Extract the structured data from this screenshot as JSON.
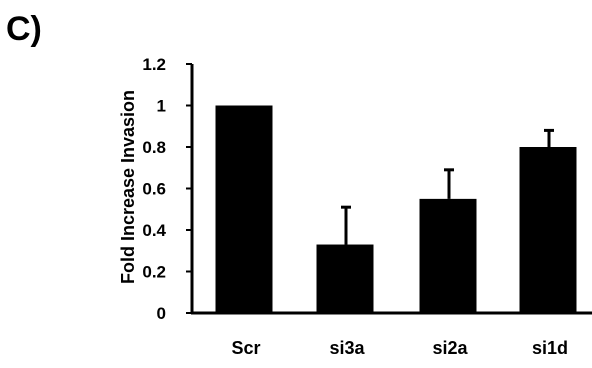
{
  "panel_label": "C)",
  "colors": {
    "bar": "#000000",
    "axis": "#000000",
    "text": "#000000",
    "background": "#ffffff"
  },
  "chart_data": {
    "type": "bar",
    "title": "",
    "xlabel": "",
    "ylabel": "Fold Increase Invasion",
    "categories": [
      "Scr",
      "si3a",
      "si2a",
      "si1d"
    ],
    "values": [
      1.0,
      0.33,
      0.55,
      0.8
    ],
    "error_upper": [
      0.0,
      0.18,
      0.14,
      0.08
    ],
    "ylim": [
      0,
      1.2
    ],
    "yticks": [
      0,
      0.2,
      0.4,
      0.6,
      0.8,
      1,
      1.2
    ],
    "ytick_labels": [
      "0",
      "0.2",
      "0.4",
      "0.6",
      "0.8",
      "1",
      "1.2"
    ],
    "grid": false,
    "legend": "none"
  }
}
